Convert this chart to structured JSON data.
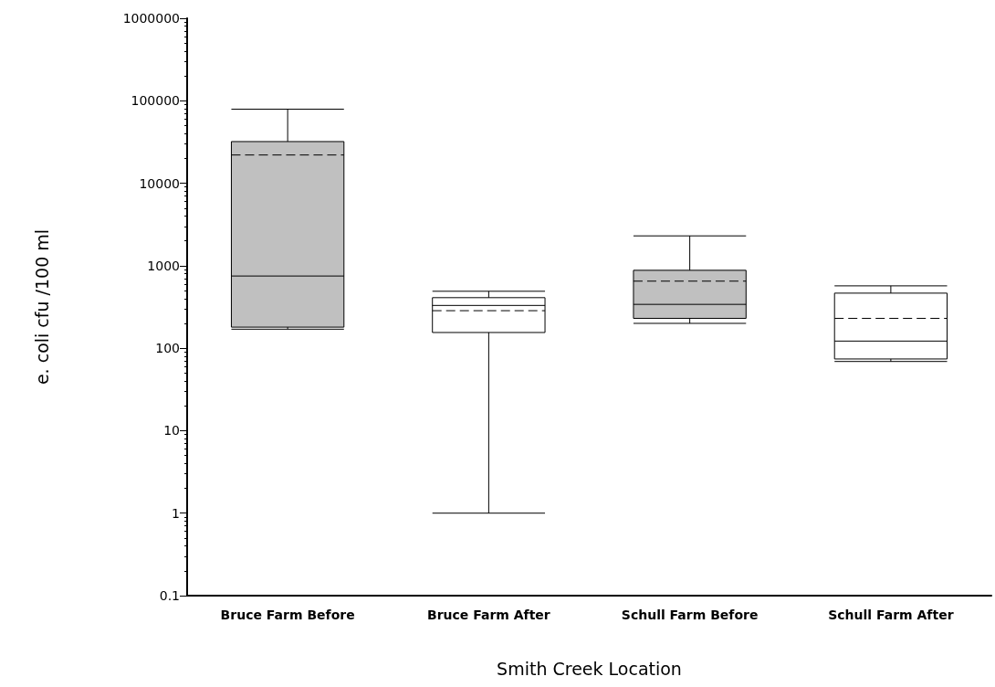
{
  "chart_data": {
    "type": "box",
    "xlabel": "Smith Creek Location",
    "ylabel": "e. coli cfu /100 ml",
    "categories": [
      "Bruce Farm Before",
      "Bruce Farm After",
      "Schull Farm Before",
      "Schull Farm After"
    ],
    "colors": [
      "#c0c0c0",
      "#ffffff",
      "#c0c0c0",
      "#ffffff"
    ],
    "boxes": [
      {
        "low": 170,
        "q1": 180,
        "median": 750,
        "q3": 32000,
        "high": 79000,
        "mean": 22000
      },
      {
        "low": 1,
        "q1": 155,
        "median": 330,
        "q3": 410,
        "high": 490,
        "mean": 285
      },
      {
        "low": 200,
        "q1": 230,
        "median": 340,
        "q3": 880,
        "high": 2300,
        "mean": 650
      },
      {
        "low": 69,
        "q1": 74,
        "median": 122,
        "q3": 465,
        "high": 570,
        "mean": 230
      }
    ],
    "log": true,
    "ylim": [
      0.1,
      1000000
    ],
    "yticks": [
      0.1,
      1,
      10,
      100,
      1000,
      10000,
      100000,
      1000000
    ],
    "grid": false
  }
}
